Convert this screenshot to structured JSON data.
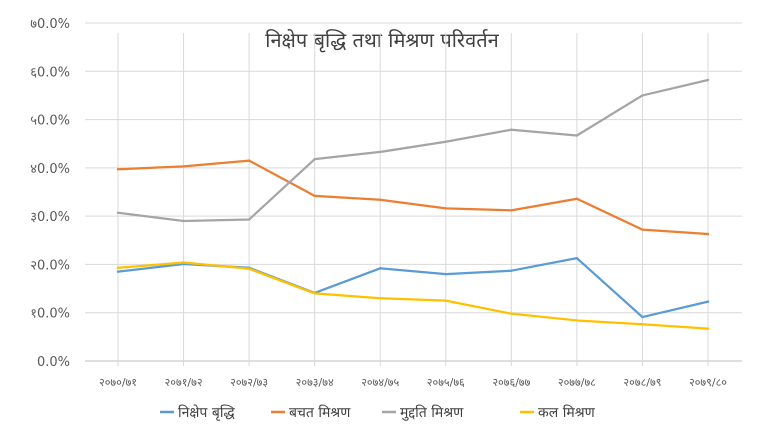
{
  "chart_data": {
    "type": "line",
    "title": "निक्षेप बृद्धि तथा मिश्रण परिवर्तन",
    "categories": [
      "२०७०/७१",
      "२०७१/७२",
      "२०७२/७३",
      "२०७३/७४",
      "२०७४/७५",
      "२०७५/७६",
      "२०७६/७७",
      "२०७७/७८",
      "२०७८/७९",
      "२०७९/८०"
    ],
    "y_tick_labels": [
      "0.0%",
      "१0.0%",
      "२0.0%",
      "३0.0%",
      "४0.0%",
      "५0.0%",
      "६0.0%",
      "७0.0%"
    ],
    "ylim": [
      0,
      70
    ],
    "grid": "horizontal",
    "legend_position": "bottom",
    "series": [
      {
        "name": "निक्षेप बृद्धि",
        "color": "#5B9BD5",
        "values": [
          18.5,
          20.1,
          19.3,
          14.1,
          19.2,
          18.0,
          18.7,
          21.3,
          9.1,
          12.3
        ]
      },
      {
        "name": "बचत मिश्रण",
        "color": "#ED7D31",
        "values": [
          39.7,
          40.3,
          41.5,
          34.2,
          33.4,
          31.6,
          31.2,
          33.6,
          27.2,
          26.3
        ]
      },
      {
        "name": "मुद्दति मिश्रण",
        "color": "#A5A5A5",
        "values": [
          30.7,
          29.0,
          29.3,
          41.8,
          43.3,
          45.4,
          47.9,
          46.7,
          55.0,
          58.2
        ]
      },
      {
        "name": "कल मिश्रण",
        "color": "#FFC000",
        "values": [
          19.3,
          20.4,
          19.1,
          14.0,
          13.0,
          12.5,
          9.8,
          8.4,
          7.6,
          6.7
        ]
      }
    ]
  }
}
